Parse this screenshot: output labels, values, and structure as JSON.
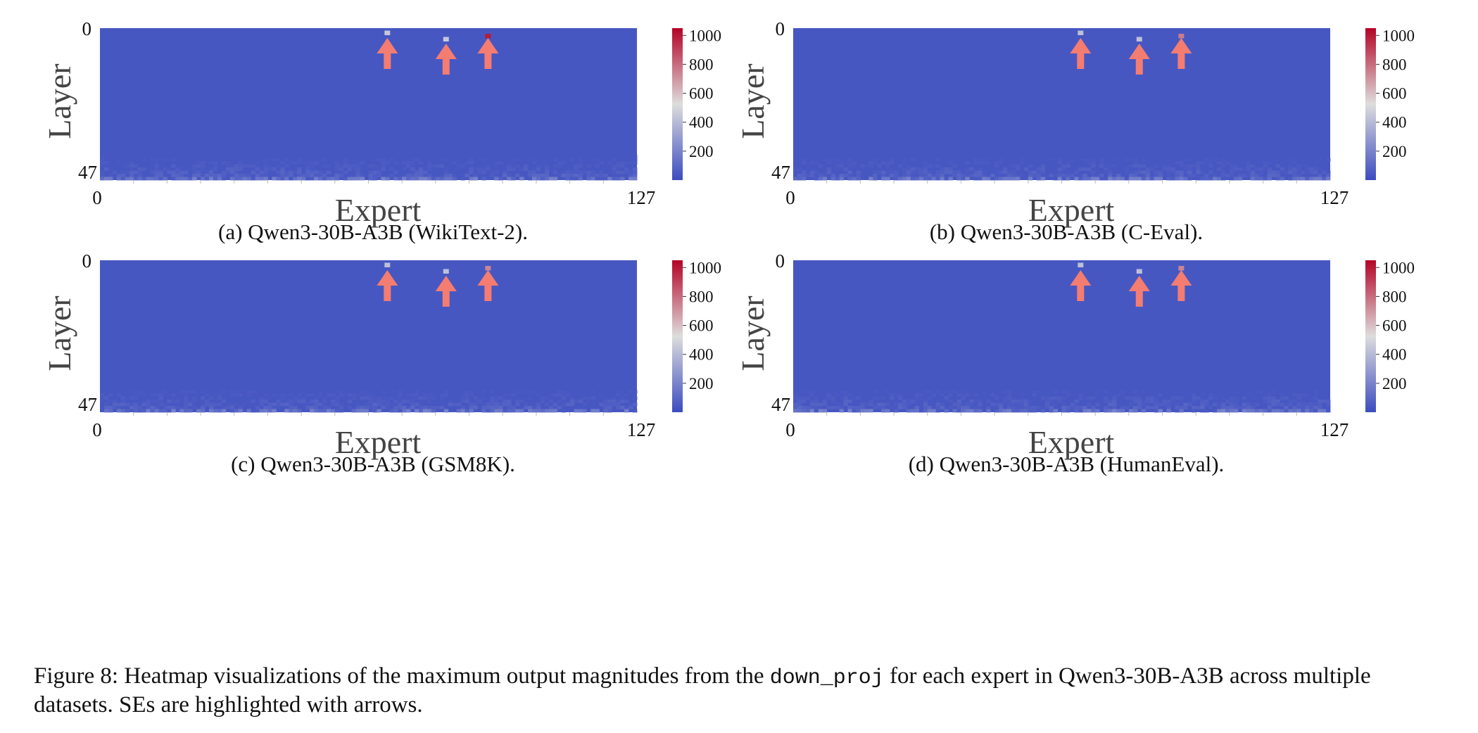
{
  "panels": [
    {
      "caption": "(a) Qwen3-30B-A3B (WikiText-2).",
      "chart_data": {
        "type": "heatmap",
        "xlabel": "Expert",
        "ylabel": "Layer",
        "x_ticks": [
          "0",
          "127"
        ],
        "y_ticks": [
          "0",
          "47"
        ],
        "x_range": [
          0,
          127
        ],
        "y_range": [
          0,
          47
        ],
        "colorbar": {
          "min": 0,
          "max": 1050,
          "ticks": [
            "200",
            "400",
            "600",
            "800",
            "1000"
          ]
        },
        "baseline_value": 40,
        "highlights": [
          {
            "expert": 68,
            "layer": 1,
            "value": 450,
            "arrow": true
          },
          {
            "expert": 82,
            "layer": 3,
            "value": 450,
            "arrow": true
          },
          {
            "expert": 92,
            "layer": 2,
            "value": 1000,
            "arrow": true
          }
        ]
      }
    },
    {
      "caption": "(b) Qwen3-30B-A3B (C-Eval).",
      "chart_data": {
        "type": "heatmap",
        "xlabel": "Expert",
        "ylabel": "Layer",
        "x_ticks": [
          "0",
          "127"
        ],
        "y_ticks": [
          "0",
          "47"
        ],
        "x_range": [
          0,
          127
        ],
        "y_range": [
          0,
          47
        ],
        "colorbar": {
          "min": 0,
          "max": 1050,
          "ticks": [
            "200",
            "400",
            "600",
            "800",
            "1000"
          ]
        },
        "baseline_value": 40,
        "highlights": [
          {
            "expert": 68,
            "layer": 1,
            "value": 420,
            "arrow": true
          },
          {
            "expert": 82,
            "layer": 3,
            "value": 420,
            "arrow": true
          },
          {
            "expert": 92,
            "layer": 2,
            "value": 760,
            "arrow": true
          }
        ]
      }
    },
    {
      "caption": "(c) Qwen3-30B-A3B (GSM8K).",
      "chart_data": {
        "type": "heatmap",
        "xlabel": "Expert",
        "ylabel": "Layer",
        "x_ticks": [
          "0",
          "127"
        ],
        "y_ticks": [
          "0",
          "47"
        ],
        "x_range": [
          0,
          127
        ],
        "y_range": [
          0,
          47
        ],
        "colorbar": {
          "min": 0,
          "max": 1050,
          "ticks": [
            "200",
            "400",
            "600",
            "800",
            "1000"
          ]
        },
        "baseline_value": 40,
        "highlights": [
          {
            "expert": 68,
            "layer": 1,
            "value": 420,
            "arrow": true
          },
          {
            "expert": 82,
            "layer": 3,
            "value": 420,
            "arrow": true
          },
          {
            "expert": 92,
            "layer": 2,
            "value": 740,
            "arrow": true
          }
        ]
      }
    },
    {
      "caption": "(d) Qwen3-30B-A3B (HumanEval).",
      "chart_data": {
        "type": "heatmap",
        "xlabel": "Expert",
        "ylabel": "Layer",
        "x_ticks": [
          "0",
          "127"
        ],
        "y_ticks": [
          "0",
          "47"
        ],
        "x_range": [
          0,
          127
        ],
        "y_range": [
          0,
          47
        ],
        "colorbar": {
          "min": 0,
          "max": 1050,
          "ticks": [
            "200",
            "400",
            "600",
            "800",
            "1000"
          ]
        },
        "baseline_value": 40,
        "highlights": [
          {
            "expert": 68,
            "layer": 1,
            "value": 420,
            "arrow": true
          },
          {
            "expert": 82,
            "layer": 3,
            "value": 420,
            "arrow": true
          },
          {
            "expert": 92,
            "layer": 2,
            "value": 740,
            "arrow": true
          }
        ]
      }
    }
  ],
  "figure_caption": {
    "before_code": "Figure 8: Heatmap visualizations of the maximum output magnitudes from the ",
    "code": "down_proj",
    "after_code": " for each expert in Qwen3-30B-A3B across multiple datasets. SEs are highlighted with arrows."
  },
  "colors": {
    "cool": "#3b4cc0",
    "neutral": "#dddddd",
    "warm": "#b40426",
    "arrow": "#f47c70"
  }
}
